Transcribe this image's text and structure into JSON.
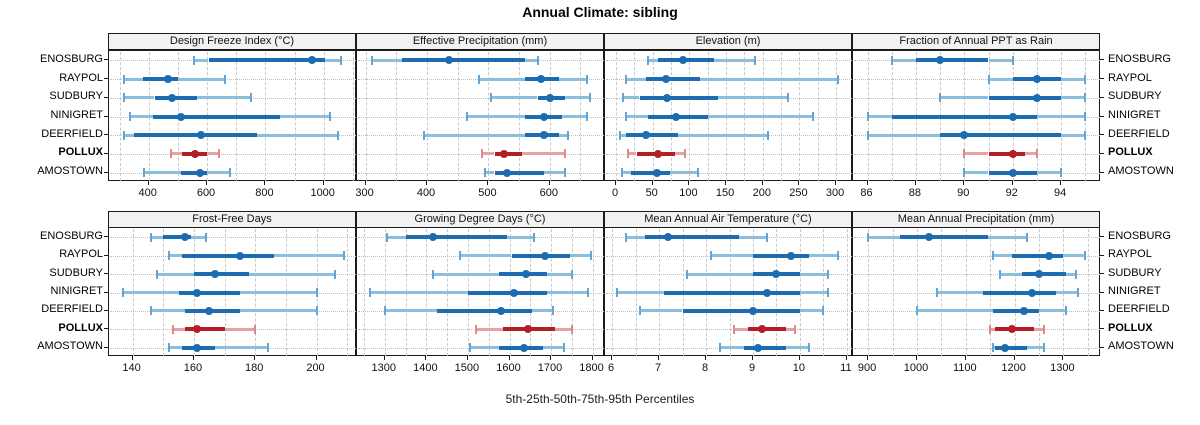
{
  "title": "Annual Climate: sibling",
  "caption": "5th-25th-50th-75th-95th Percentiles",
  "sites": [
    "ENOSBURG",
    "RAYPOL",
    "SUDBURY",
    "NINIGRET",
    "DEERFIELD",
    "POLLUX",
    "AMOSTOWN"
  ],
  "highlight_site": "POLLUX",
  "colors": {
    "blue_dark": "#1d6cb1",
    "blue_light": "#8cbede",
    "blue_cap": "#64a5d5",
    "red_dark": "#b22025",
    "red_light": "#e7a3a3",
    "red_cap": "#d98b8b",
    "grid": "#c9c9c9",
    "row_guide": "#c0c0c0",
    "strip_bg": "#f2f2f2",
    "border": "#1b1b1b"
  },
  "chart_data": {
    "type": "dotplot-percentiles",
    "note": "Each row: [p5, p25, p50, p75, p95] per site, sites ordered as in sites[]",
    "percentiles": [
      5,
      25,
      50,
      75,
      95
    ],
    "legend_position": "none",
    "grid": "dashed-vertical",
    "panels": [
      {
        "title": "Design Freeze Index (°C)",
        "row": 0,
        "col": 0,
        "domain": [
          264,
          1114
        ],
        "ticks": [
          400,
          600,
          800,
          1000
        ],
        "gridlines": [
          300,
          400,
          500,
          600,
          700,
          800,
          900,
          1000,
          1100
        ],
        "series": [
          [
            555,
            605,
            960,
            1005,
            1060
          ],
          [
            315,
            380,
            465,
            500,
            660
          ],
          [
            315,
            420,
            480,
            565,
            750
          ],
          [
            335,
            415,
            510,
            850,
            1020
          ],
          [
            315,
            350,
            580,
            770,
            1050
          ],
          [
            475,
            515,
            560,
            600,
            640
          ],
          [
            385,
            510,
            575,
            600,
            680
          ]
        ]
      },
      {
        "title": "Effective Precipitation (mm)",
        "row": 0,
        "col": 1,
        "domain": [
          286,
          690
        ],
        "ticks": [
          300,
          400,
          500,
          600
        ],
        "gridlines": [
          300,
          350,
          400,
          450,
          500,
          550,
          600,
          650
        ],
        "series": [
          [
            310,
            360,
            435,
            560,
            580
          ],
          [
            485,
            560,
            585,
            615,
            660
          ],
          [
            505,
            580,
            600,
            625,
            665
          ],
          [
            465,
            560,
            590,
            620,
            660
          ],
          [
            395,
            560,
            590,
            615,
            630
          ],
          [
            490,
            510,
            525,
            555,
            625
          ],
          [
            495,
            510,
            530,
            590,
            625
          ]
        ]
      },
      {
        "title": "Elevation (m)",
        "row": 0,
        "col": 2,
        "domain": [
          -15,
          323
        ],
        "ticks": [
          0,
          50,
          100,
          150,
          200,
          250,
          300
        ],
        "gridlines": [
          0,
          25,
          50,
          75,
          100,
          125,
          150,
          175,
          200,
          225,
          250,
          275,
          300
        ],
        "series": [
          [
            44,
            57,
            91,
            134,
            189
          ],
          [
            14,
            41,
            68,
            114,
            303
          ],
          [
            10,
            32,
            69,
            139,
            235
          ],
          [
            13,
            44,
            82,
            125,
            269
          ],
          [
            5,
            14,
            41,
            85,
            207
          ],
          [
            16,
            28,
            57,
            80,
            94
          ],
          [
            8,
            21,
            56,
            73,
            112
          ]
        ]
      },
      {
        "title": "Fraction of Annual PPT as Rain",
        "row": 0,
        "col": 3,
        "domain": [
          85.4,
          95.65
        ],
        "ticks": [
          86,
          88,
          90,
          92,
          94
        ],
        "gridlines": [
          86,
          87,
          88,
          89,
          90,
          91,
          92,
          93,
          94,
          95
        ],
        "series": [
          [
            87,
            88,
            89,
            91,
            92
          ],
          [
            91,
            92,
            93,
            94,
            95
          ],
          [
            89,
            91,
            93,
            94,
            95
          ],
          [
            86,
            87,
            92,
            93,
            95
          ],
          [
            86,
            89,
            90,
            94,
            95
          ],
          [
            90,
            91,
            92,
            92.5,
            93
          ],
          [
            90,
            91,
            92,
            93,
            94
          ]
        ]
      },
      {
        "title": "Frost-Free Days",
        "row": 1,
        "col": 0,
        "domain": [
          132.3,
          213.2
        ],
        "ticks": [
          140,
          160,
          180,
          200
        ],
        "gridlines": [
          140,
          150,
          160,
          170,
          180,
          190,
          200,
          210
        ],
        "series": [
          [
            146,
            150,
            157,
            159,
            164
          ],
          [
            152,
            156,
            175,
            186,
            209
          ],
          [
            148,
            160,
            167,
            178,
            206
          ],
          [
            137,
            155,
            161,
            175,
            200
          ],
          [
            146,
            157,
            165,
            175,
            200
          ],
          [
            153,
            157,
            161,
            170,
            180
          ],
          [
            152,
            156,
            161,
            167,
            184
          ]
        ]
      },
      {
        "title": "Growing Degree Days (°C)",
        "row": 1,
        "col": 1,
        "domain": [
          1233,
          1830
        ],
        "ticks": [
          1300,
          1400,
          1500,
          1600,
          1700,
          1800
        ],
        "gridlines": [
          1250,
          1300,
          1350,
          1400,
          1450,
          1500,
          1550,
          1600,
          1650,
          1700,
          1750,
          1800
        ],
        "series": [
          [
            1305,
            1350,
            1415,
            1595,
            1660
          ],
          [
            1480,
            1605,
            1685,
            1745,
            1795
          ],
          [
            1415,
            1575,
            1640,
            1690,
            1750
          ],
          [
            1265,
            1500,
            1610,
            1690,
            1790
          ],
          [
            1300,
            1425,
            1580,
            1655,
            1705
          ],
          [
            1520,
            1585,
            1645,
            1710,
            1750
          ],
          [
            1505,
            1575,
            1635,
            1680,
            1730
          ]
        ]
      },
      {
        "title": "Mean Annual Air Temperature (°C)",
        "row": 1,
        "col": 2,
        "domain": [
          5.85,
          11.13
        ],
        "ticks": [
          6,
          7,
          8,
          9,
          10,
          11
        ],
        "gridlines": [
          6,
          6.5,
          7,
          7.5,
          8,
          8.5,
          9,
          9.5,
          10,
          10.5,
          11
        ],
        "series": [
          [
            6.3,
            6.7,
            7.2,
            8.7,
            9.3
          ],
          [
            8.1,
            9.0,
            9.8,
            10.2,
            10.8
          ],
          [
            7.6,
            9.0,
            9.5,
            10.0,
            10.6
          ],
          [
            6.1,
            7.1,
            9.3,
            10.0,
            10.6
          ],
          [
            6.6,
            7.5,
            9.0,
            10.0,
            10.5
          ],
          [
            8.6,
            8.9,
            9.2,
            9.7,
            9.9
          ],
          [
            8.3,
            8.8,
            9.1,
            9.7,
            10.2
          ]
        ]
      },
      {
        "title": "Mean Annual Precipitation (mm)",
        "row": 1,
        "col": 3,
        "domain": [
          869,
          1377
        ],
        "ticks": [
          900,
          1000,
          1100,
          1200,
          1300
        ],
        "gridlines": [
          900,
          950,
          1000,
          1050,
          1100,
          1150,
          1200,
          1250,
          1300,
          1350
        ],
        "series": [
          [
            900,
            965,
            1025,
            1145,
            1225
          ],
          [
            1155,
            1195,
            1270,
            1300,
            1345
          ],
          [
            1170,
            1215,
            1250,
            1305,
            1325
          ],
          [
            1040,
            1135,
            1235,
            1285,
            1330
          ],
          [
            1000,
            1155,
            1220,
            1250,
            1305
          ],
          [
            1150,
            1160,
            1195,
            1240,
            1260
          ],
          [
            1155,
            1160,
            1180,
            1225,
            1260
          ]
        ]
      }
    ]
  }
}
